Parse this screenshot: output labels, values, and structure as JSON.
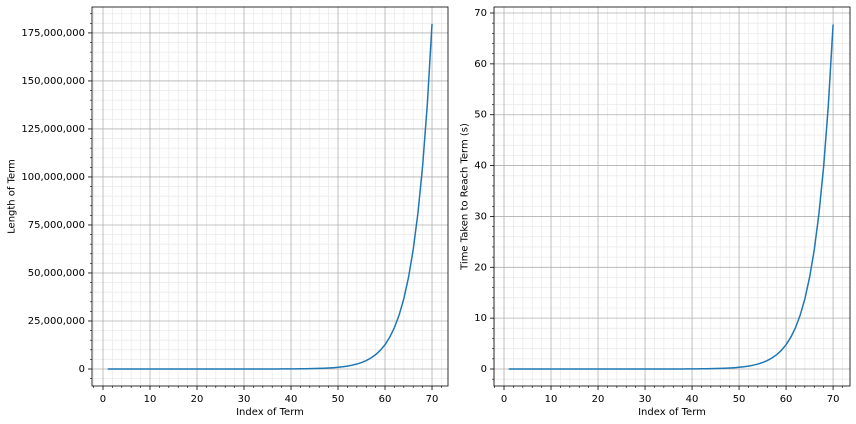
{
  "chart_data": [
    {
      "type": "line",
      "xlabel": "Index of Term",
      "ylabel": "Length of Term",
      "color": "#1f77b4",
      "grid": true,
      "minor_grid": true,
      "x": [
        1,
        2,
        3,
        4,
        5,
        6,
        7,
        8,
        9,
        10,
        11,
        12,
        13,
        14,
        15,
        16,
        17,
        18,
        19,
        20,
        21,
        22,
        23,
        24,
        25,
        26,
        27,
        28,
        29,
        30,
        31,
        32,
        33,
        34,
        35,
        36,
        37,
        38,
        39,
        40,
        41,
        42,
        43,
        44,
        45,
        46,
        47,
        48,
        49,
        50,
        51,
        52,
        53,
        54,
        55,
        56,
        57,
        58,
        59,
        60,
        61,
        62,
        63,
        64,
        65,
        66,
        67,
        68,
        69,
        70
      ],
      "values": [
        1,
        2,
        2,
        4,
        6,
        6,
        8,
        10,
        14,
        20,
        26,
        34,
        46,
        62,
        78,
        102,
        134,
        176,
        226,
        302,
        408,
        528,
        678,
        904,
        1182,
        1540,
        1990,
        2586,
        3426,
        4462,
        5808,
        7586,
        9898,
        12884,
        16774,
        21890,
        28528,
        37158,
        48410,
        63138,
        82350,
        107312,
        139984,
        182376,
        237746,
        310036,
        403966,
        526646,
        686646,
        894810,
        1166642,
        1520986,
        1982710,
        2584304,
        3369156,
        4391702,
        5724486,
        7462860,
        9727930,
        12680852,
        16530884,
        21549544,
        28091184,
        36619162,
        47736936,
        62226614,
        81117366,
        105745224,
        137842560,
        179691598
      ],
      "xlim": [
        -2.34,
        73.4
      ],
      "xticks": [
        0,
        10,
        20,
        30,
        40,
        50,
        60,
        70
      ],
      "ylim": [
        -8850000,
        188500000
      ],
      "yticks": [
        0,
        {
          "value": 25000000,
          "label": "25,000,000"
        },
        {
          "value": 50000000,
          "label": "50,000,000"
        },
        {
          "value": 75000000,
          "label": "75,000,000"
        },
        {
          "value": 100000000,
          "label": "100,000,000"
        },
        {
          "value": 125000000,
          "label": "125,000,000"
        },
        {
          "value": 150000000,
          "label": "150,000,000"
        },
        {
          "value": 175000000,
          "label": "175,000,000"
        }
      ]
    },
    {
      "type": "line",
      "xlabel": "Index of Term",
      "ylabel": "Time Taken to Reach Term (s)",
      "color": "#1f77b4",
      "grid": true,
      "minor_grid": true,
      "x": [
        1,
        2,
        3,
        4,
        5,
        6,
        7,
        8,
        9,
        10,
        11,
        12,
        13,
        14,
        15,
        16,
        17,
        18,
        19,
        20,
        21,
        22,
        23,
        24,
        25,
        26,
        27,
        28,
        29,
        30,
        31,
        32,
        33,
        34,
        35,
        36,
        37,
        38,
        39,
        40,
        41,
        42,
        43,
        44,
        45,
        46,
        47,
        48,
        49,
        50,
        51,
        52,
        53,
        54,
        55,
        56,
        57,
        58,
        59,
        60,
        61,
        62,
        63,
        64,
        65,
        66,
        67,
        68,
        69,
        70
      ],
      "values": [
        0,
        0,
        0,
        0,
        0,
        0,
        0,
        0,
        0,
        0,
        0,
        0,
        0,
        0,
        0,
        0,
        0,
        0,
        0,
        0,
        0,
        0,
        0,
        0,
        0,
        0,
        0,
        0,
        0,
        0,
        0,
        0,
        0,
        0,
        0,
        0,
        0.01,
        0.01,
        0.02,
        0.02,
        0.03,
        0.04,
        0.05,
        0.07,
        0.09,
        0.12,
        0.15,
        0.2,
        0.26,
        0.34,
        0.44,
        0.57,
        0.75,
        0.97,
        1.27,
        1.66,
        2.16,
        2.81,
        3.67,
        4.78,
        6.23,
        8.12,
        10.59,
        13.81,
        18,
        23.46,
        30.58,
        39.87,
        51.97,
        67.74
      ],
      "xlim": [
        -2.13,
        73.6
      ],
      "xticks": [
        0,
        10,
        20,
        30,
        40,
        50,
        60,
        70
      ],
      "ylim": [
        -3.34,
        71.18
      ],
      "yticks": [
        0,
        10,
        20,
        30,
        40,
        50,
        60,
        70
      ]
    }
  ]
}
